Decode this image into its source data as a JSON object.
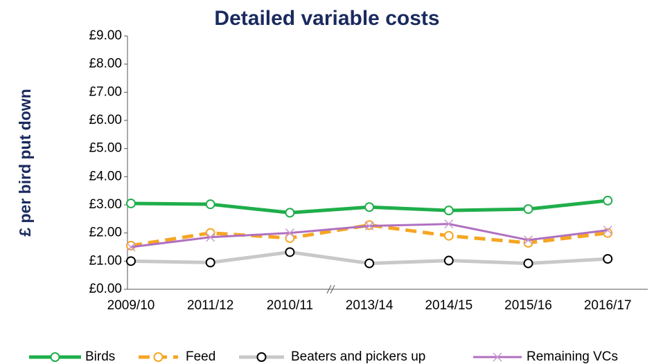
{
  "chart_data": {
    "type": "line",
    "title": "Detailed variable costs",
    "y_label": "£ per bird put down",
    "categories": [
      "2009/10",
      "2011/12",
      "2010/11",
      "2013/14",
      "2014/15",
      "2015/16",
      "2016/17"
    ],
    "series": [
      {
        "name": "Birds",
        "color": "#1fae4b",
        "marker": "circle",
        "values": [
          3.05,
          3.02,
          2.72,
          2.92,
          2.8,
          2.85,
          3.15
        ]
      },
      {
        "name": "Feed",
        "color": "#f5a623",
        "marker": "circle",
        "dashed": true,
        "values": [
          1.55,
          2.0,
          1.82,
          2.28,
          1.9,
          1.65,
          2.0
        ]
      },
      {
        "name": "Beaters and pickers up",
        "color": "#c8c8c8",
        "marker": "circle",
        "marker_color": "#000000",
        "values": [
          1.0,
          0.95,
          1.32,
          0.92,
          1.02,
          0.92,
          1.08
        ]
      },
      {
        "name": "Remaining VCs",
        "color": "#b070c0",
        "marker": "x",
        "values": [
          1.5,
          1.85,
          2.0,
          2.25,
          2.32,
          1.75,
          2.1
        ]
      }
    ],
    "ylim": [
      0,
      9
    ],
    "yticks": [
      {
        "value": 0,
        "label": "£0.00"
      },
      {
        "value": 1,
        "label": "£1.00"
      },
      {
        "value": 2,
        "label": "£2.00"
      },
      {
        "value": 3,
        "label": "£3.00"
      },
      {
        "value": 4,
        "label": "£4.00"
      },
      {
        "value": 5,
        "label": "£5.00"
      },
      {
        "value": 6,
        "label": "£6.00"
      },
      {
        "value": 7,
        "label": "£7.00"
      },
      {
        "value": 8,
        "label": "£8.00"
      },
      {
        "value": 9,
        "label": "£9.00"
      }
    ],
    "legend": "bottom"
  }
}
